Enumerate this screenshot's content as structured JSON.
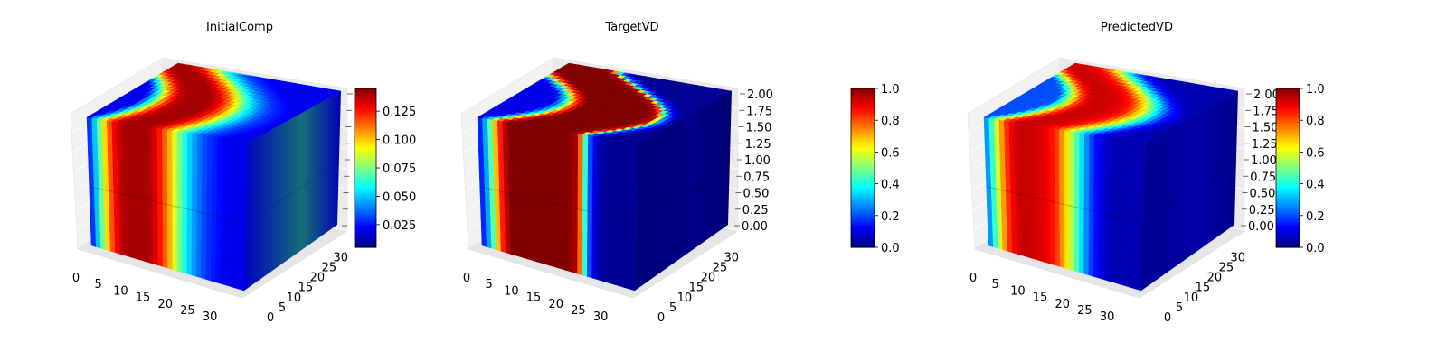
{
  "chart_data": [
    {
      "type": "voxel-3d",
      "title": "InitialComp",
      "x_ticks": [
        "0",
        "5",
        "10",
        "15",
        "20",
        "25",
        "30"
      ],
      "y_ticks": [
        "0",
        "5",
        "10",
        "15",
        "20",
        "25",
        "30"
      ],
      "z_ticks": [],
      "colorbar": {
        "ticks": [
          "0.025",
          "0.050",
          "0.075",
          "0.100",
          "0.125"
        ],
        "range": [
          0.005,
          0.145
        ],
        "colormap": "jet"
      },
      "front_face_profile": {
        "x": [
          0,
          2,
          4,
          6,
          8,
          10,
          12,
          14,
          16,
          18,
          20,
          22,
          24,
          26,
          28,
          30,
          32
        ],
        "values": [
          0.02,
          0.06,
          0.11,
          0.135,
          0.14,
          0.14,
          0.14,
          0.13,
          0.11,
          0.08,
          0.055,
          0.04,
          0.03,
          0.025,
          0.02,
          0.02,
          0.02
        ]
      }
    },
    {
      "type": "voxel-3d",
      "title": "TargetVD",
      "x_ticks": [
        "0",
        "5",
        "10",
        "15",
        "20",
        "25",
        "30"
      ],
      "y_ticks": [
        "0",
        "5",
        "10",
        "15",
        "20",
        "25",
        "30"
      ],
      "z_ticks": [
        "0.00",
        "0.25",
        "0.50",
        "0.75",
        "1.00",
        "1.25",
        "1.50",
        "1.75",
        "2.00"
      ],
      "colorbar": {
        "ticks": [
          "0.0",
          "0.2",
          "0.4",
          "0.6",
          "0.8",
          "1.0"
        ],
        "range": [
          0,
          1
        ],
        "colormap": "jet"
      },
      "front_face_profile": {
        "x": [
          0,
          2,
          4,
          6,
          8,
          10,
          12,
          14,
          16,
          18,
          20,
          22,
          24,
          26,
          28,
          30,
          32
        ],
        "values": [
          0.1,
          0.35,
          0.8,
          1.0,
          1.0,
          1.0,
          1.0,
          1.0,
          1.0,
          1.0,
          0.95,
          0.25,
          0.05,
          0.02,
          0.02,
          0.02,
          0.02
        ]
      }
    },
    {
      "type": "voxel-3d",
      "title": "PredictedVD",
      "x_ticks": [
        "0",
        "5",
        "10",
        "15",
        "20",
        "25",
        "30"
      ],
      "y_ticks": [
        "0",
        "5",
        "10",
        "15",
        "20",
        "25",
        "30"
      ],
      "z_ticks": [
        "0.00",
        "0.25",
        "0.50",
        "0.75",
        "1.00",
        "1.25",
        "1.50",
        "1.75",
        "2.00"
      ],
      "colorbar": {
        "ticks": [
          "0.0",
          "0.2",
          "0.4",
          "0.6",
          "0.8",
          "1.0"
        ],
        "range": [
          0,
          1
        ],
        "colormap": "jet"
      },
      "front_face_profile": {
        "x": [
          0,
          2,
          4,
          6,
          8,
          10,
          12,
          14,
          16,
          18,
          20,
          22,
          24,
          26,
          28,
          30,
          32
        ],
        "values": [
          0.2,
          0.5,
          0.8,
          0.92,
          0.93,
          0.92,
          0.9,
          0.85,
          0.7,
          0.5,
          0.3,
          0.15,
          0.08,
          0.05,
          0.05,
          0.05,
          0.05
        ]
      }
    }
  ]
}
